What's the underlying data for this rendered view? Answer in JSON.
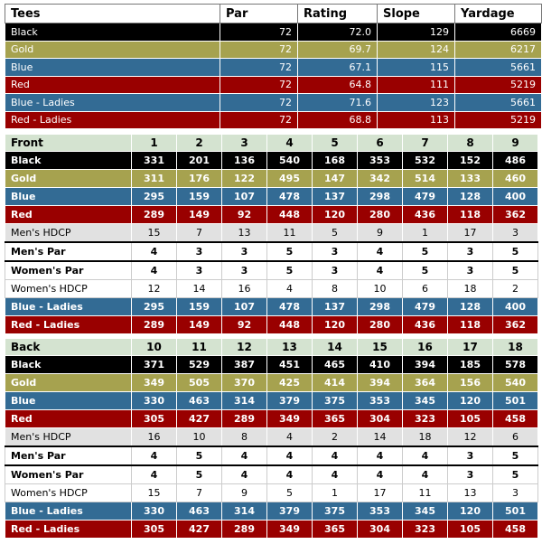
{
  "summary": {
    "headers": [
      "Tees",
      "Par",
      "Rating",
      "Slope",
      "Yardage"
    ],
    "rows": [
      {
        "tee": "Black",
        "style": "black",
        "par": "72",
        "rating": "72.0",
        "slope": "129",
        "yardage": "6669"
      },
      {
        "tee": "Gold",
        "style": "gold",
        "par": "72",
        "rating": "69.7",
        "slope": "124",
        "yardage": "6217"
      },
      {
        "tee": "Blue",
        "style": "blue",
        "par": "72",
        "rating": "67.1",
        "slope": "115",
        "yardage": "5661"
      },
      {
        "tee": "Red",
        "style": "red",
        "par": "72",
        "rating": "64.8",
        "slope": "111",
        "yardage": "5219"
      },
      {
        "tee": "Blue - Ladies",
        "style": "blue",
        "par": "72",
        "rating": "71.6",
        "slope": "123",
        "yardage": "5661"
      },
      {
        "tee": "Red - Ladies",
        "style": "red",
        "par": "72",
        "rating": "68.8",
        "slope": "113",
        "yardage": "5219"
      }
    ]
  },
  "front": {
    "title": "Front",
    "holes": [
      "1",
      "2",
      "3",
      "4",
      "5",
      "6",
      "7",
      "8",
      "9"
    ],
    "rows": [
      {
        "label": "Black",
        "style": "black",
        "values": [
          "331",
          "201",
          "136",
          "540",
          "168",
          "353",
          "532",
          "152",
          "486"
        ]
      },
      {
        "label": "Gold",
        "style": "gold",
        "values": [
          "311",
          "176",
          "122",
          "495",
          "147",
          "342",
          "514",
          "133",
          "460"
        ]
      },
      {
        "label": "Blue",
        "style": "blue",
        "values": [
          "295",
          "159",
          "107",
          "478",
          "137",
          "298",
          "479",
          "128",
          "400"
        ]
      },
      {
        "label": "Red",
        "style": "red",
        "values": [
          "289",
          "149",
          "92",
          "448",
          "120",
          "280",
          "436",
          "118",
          "362"
        ]
      },
      {
        "label": "Men's HDCP",
        "style": "light",
        "values": [
          "15",
          "7",
          "13",
          "11",
          "5",
          "9",
          "1",
          "17",
          "3"
        ]
      },
      {
        "label": "Men's Par",
        "style": "white-bold",
        "values": [
          "4",
          "3",
          "3",
          "5",
          "3",
          "4",
          "5",
          "3",
          "5"
        ]
      },
      {
        "label": "Women's Par",
        "style": "white-bold-gap",
        "values": [
          "4",
          "3",
          "3",
          "5",
          "3",
          "4",
          "5",
          "3",
          "5"
        ]
      },
      {
        "label": "Women's HDCP",
        "style": "white",
        "values": [
          "12",
          "14",
          "16",
          "4",
          "8",
          "10",
          "6",
          "18",
          "2"
        ]
      },
      {
        "label": "Blue - Ladies",
        "style": "blue",
        "values": [
          "295",
          "159",
          "107",
          "478",
          "137",
          "298",
          "479",
          "128",
          "400"
        ]
      },
      {
        "label": "Red - Ladies",
        "style": "red",
        "values": [
          "289",
          "149",
          "92",
          "448",
          "120",
          "280",
          "436",
          "118",
          "362"
        ]
      }
    ]
  },
  "back": {
    "title": "Back",
    "holes": [
      "10",
      "11",
      "12",
      "13",
      "14",
      "15",
      "16",
      "17",
      "18"
    ],
    "rows": [
      {
        "label": "Black",
        "style": "black",
        "values": [
          "371",
          "529",
          "387",
          "451",
          "465",
          "410",
          "394",
          "185",
          "578"
        ]
      },
      {
        "label": "Gold",
        "style": "gold",
        "values": [
          "349",
          "505",
          "370",
          "425",
          "414",
          "394",
          "364",
          "156",
          "540"
        ]
      },
      {
        "label": "Blue",
        "style": "blue",
        "values": [
          "330",
          "463",
          "314",
          "379",
          "375",
          "353",
          "345",
          "120",
          "501"
        ]
      },
      {
        "label": "Red",
        "style": "red",
        "values": [
          "305",
          "427",
          "289",
          "349",
          "365",
          "304",
          "323",
          "105",
          "458"
        ]
      },
      {
        "label": "Men's HDCP",
        "style": "light",
        "values": [
          "16",
          "10",
          "8",
          "4",
          "2",
          "14",
          "18",
          "12",
          "6"
        ]
      },
      {
        "label": "Men's Par",
        "style": "white-bold",
        "values": [
          "4",
          "5",
          "4",
          "4",
          "4",
          "4",
          "4",
          "3",
          "5"
        ]
      },
      {
        "label": "Women's Par",
        "style": "white-bold-gap",
        "values": [
          "4",
          "5",
          "4",
          "4",
          "4",
          "4",
          "4",
          "3",
          "5"
        ]
      },
      {
        "label": "Women's HDCP",
        "style": "white",
        "values": [
          "15",
          "7",
          "9",
          "5",
          "1",
          "17",
          "11",
          "13",
          "3"
        ]
      },
      {
        "label": "Blue - Ladies",
        "style": "blue",
        "values": [
          "330",
          "463",
          "314",
          "379",
          "375",
          "353",
          "345",
          "120",
          "501"
        ]
      },
      {
        "label": "Red - Ladies",
        "style": "red",
        "values": [
          "305",
          "427",
          "289",
          "349",
          "365",
          "304",
          "323",
          "105",
          "458"
        ]
      }
    ]
  },
  "colors": {
    "black": "#000000",
    "gold": "#a6a24f",
    "blue": "#336b94",
    "red": "#990000",
    "header": "#d4e3d0",
    "light": "#e1e1e1"
  }
}
